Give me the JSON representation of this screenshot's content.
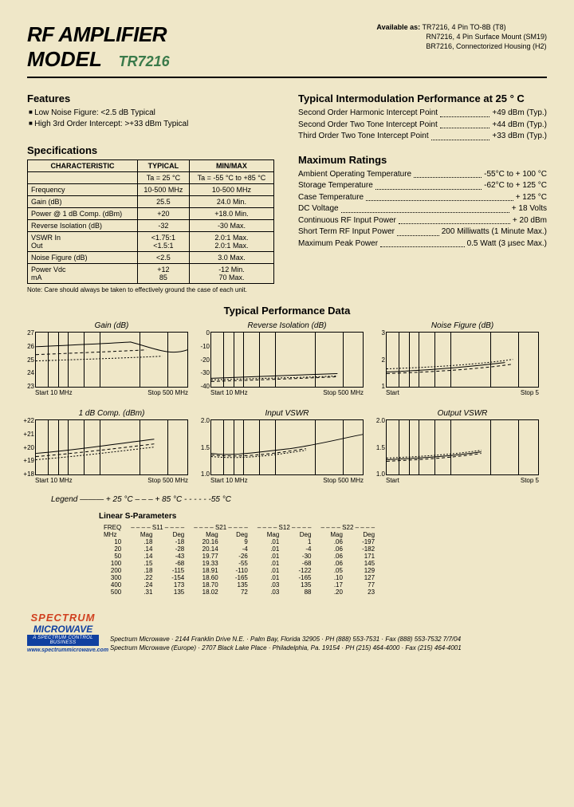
{
  "header": {
    "title_l1": "RF AMPLIFIER",
    "title_l2": "MODEL",
    "model": "TR7216",
    "avail_label": "Available as:",
    "avail": [
      "TR7216, 4 Pin TO-8B (T8)",
      "RN7216, 4 Pin Surface Mount (SM19)",
      "BR7216, Connectorized Housing (H2)"
    ]
  },
  "features": {
    "heading": "Features",
    "items": [
      "Low Noise Figure: <2.5 dB Typical",
      "High 3rd Order Intercept: >+33 dBm Typical"
    ]
  },
  "spec": {
    "heading": "Specifications",
    "cols": [
      "CHARACTERISTIC",
      "TYPICAL",
      "MIN/MAX"
    ],
    "subcols": [
      "",
      "Ta = 25 °C",
      "Ta = -55 °C to +85 °C"
    ],
    "rows": [
      [
        "Frequency",
        "10-500 MHz",
        "10-500 MHz"
      ],
      [
        "Gain (dB)",
        "25.5",
        "24.0 Min."
      ],
      [
        "Power @ 1 dB Comp. (dBm)",
        "+20",
        "+18.0 Min."
      ],
      [
        "Reverse Isolation (dB)",
        "-32",
        "-30 Max."
      ],
      [
        "VSWR   In\n            Out",
        "<1.75:1\n<1.5:1",
        "2.0:1 Max.\n2.0:1 Max."
      ],
      [
        "Noise Figure (dB)",
        "<2.5",
        "3.0 Max."
      ],
      [
        "Power    Vdc\n              mA",
        "+12\n85",
        "-12 Min.\n70 Max."
      ]
    ],
    "note": "Note: Care should always be taken to effectively ground the case of each unit."
  },
  "intermod": {
    "heading": "Typical Intermodulation Performance at 25 ° C",
    "rows": [
      {
        "l": "Second Order Harmonic Intercept Point",
        "v": "+49 dBm (Typ.)"
      },
      {
        "l": "Second Order Two Tone Intercept Point",
        "v": "+44 dBm (Typ.)"
      },
      {
        "l": "Third Order Two Tone Intercept Point",
        "v": "+33 dBm (Typ.)"
      }
    ]
  },
  "maxratings": {
    "heading": "Maximum Ratings",
    "rows": [
      {
        "l": "Ambient Operating Temperature",
        "v": "-55°C to + 100 °C"
      },
      {
        "l": "Storage Temperature",
        "v": "-62°C to + 125 °C"
      },
      {
        "l": "Case Temperature",
        "v": "+ 125 °C"
      },
      {
        "l": "DC Voltage",
        "v": "+ 18 Volts"
      },
      {
        "l": "Continuous RF Input Power",
        "v": "+ 20 dBm"
      },
      {
        "l": "Short Term RF Input Power",
        "v": "200 Milliwatts (1 Minute Max.)"
      },
      {
        "l": "Maximum Peak Power",
        "v": "0.5 Watt (3 µsec Max.)"
      }
    ]
  },
  "perf_title": "Typical Performance Data",
  "charts": [
    {
      "title": "Gain (dB)",
      "ylabels": [
        "27",
        "26",
        "25",
        "24",
        "23"
      ],
      "xstart": "Start 10 MHz",
      "xstop": "Stop 500 MHz",
      "paths": [
        "M0,18 C40,16 90,14 120,12 150,20 170,30 192,22",
        "M0,28 C50,26 100,24 140,22 170,26 192,30",
        "M0,36 C60,34 120,32 160,30 192,36"
      ]
    },
    {
      "title": "Reverse Isolation (dB)",
      "ylabels": [
        "0",
        "-10",
        "-20",
        "-30",
        "-40"
      ],
      "xstart": "Start 10 MHz",
      "xstop": "Stop 500 MHz",
      "paths": [
        "M0,58 C60,56 120,54 160,52 192,50",
        "M0,62 C60,60 120,58 160,56 192,54",
        "M0,60 C60,58 120,57 160,55 192,52"
      ]
    },
    {
      "title": "Noise Figure (dB)",
      "ylabels": [
        "3",
        "",
        "2",
        "",
        "1"
      ],
      "xstart": "Start",
      "xstop": "Stop 5",
      "paths": [
        "M0,50 C50,48 100,44 150,38 192,30",
        "M0,52 C60,50 120,46 160,40 192,34",
        "M0,46 C60,44 120,40 160,34 192,28"
      ]
    },
    {
      "title": "1 dB Comp. (dBm)",
      "ylabels": [
        "+22",
        "+21",
        "+20",
        "+19",
        "+18"
      ],
      "xstart": "Start 10 MHz",
      "xstop": "Stop 500 MHz",
      "paths": [
        "M0,42 C50,38 100,30 150,24 192,20",
        "M0,46 C50,42 100,36 150,30 192,26",
        "M0,50 C50,46 100,40 150,34 192,30"
      ]
    },
    {
      "title": "Input VSWR",
      "ylabels": [
        "2.0",
        "",
        "1.5",
        "",
        "1.0"
      ],
      "xstart": "Start 10 MHz",
      "xstop": "Stop 500 MHz",
      "paths": [
        "M0,42 C30,46 60,40 100,36 140,30 170,22 192,18",
        "M0,44 C40,48 80,42 120,36 160,28 192,22",
        "M0,46 C40,50 80,44 120,38 160,30 192,24"
      ]
    },
    {
      "title": "Output VSWR",
      "ylabels": [
        "2.0",
        "",
        "1.5",
        "",
        "1.0"
      ],
      "xstart": "Start",
      "xstop": "Stop 5",
      "paths": [
        "M0,50 C40,48 80,46 120,40 160,30 192,22",
        "M0,52 C40,50 80,48 120,42 160,34 192,26",
        "M0,48 C40,46 80,44 120,38 160,28 192,20"
      ]
    }
  ],
  "legend": "Legend ——— + 25 °C  – – –  + 85 °C  - - - - -  -55 °C",
  "sparams": {
    "heading": "Linear S-Parameters",
    "freq_h": "FREQ\nMHz",
    "groups": [
      "S11",
      "S21",
      "S12",
      "S22"
    ],
    "sub": [
      "Mag",
      "Deg"
    ],
    "rows": [
      [
        "10",
        ".18",
        "-18",
        "20.16",
        "9",
        ".01",
        "1",
        ".06",
        "-197"
      ],
      [
        "20",
        ".14",
        "-28",
        "20.14",
        "-4",
        ".01",
        "-4",
        ".06",
        "-182"
      ],
      [
        "50",
        ".14",
        "-43",
        "19.77",
        "-26",
        ".01",
        "-30",
        ".06",
        "171"
      ],
      [
        "100",
        ".15",
        "-68",
        "19.33",
        "-55",
        ".01",
        "-68",
        ".06",
        "145"
      ],
      [
        "200",
        ".18",
        "-115",
        "18.91",
        "-110",
        ".01",
        "-122",
        ".05",
        "129"
      ],
      [
        "300",
        ".22",
        "-154",
        "18.60",
        "-165",
        ".01",
        "-165",
        ".10",
        "127"
      ],
      [
        "400",
        ".24",
        "173",
        "18.70",
        "135",
        ".03",
        "135",
        ".17",
        "77"
      ],
      [
        "500",
        ".31",
        "135",
        "18.02",
        "72",
        ".03",
        "88",
        ".20",
        "23"
      ]
    ]
  },
  "footer": {
    "logo_top": "SPECTRUM",
    "logo_mid": "MICROWAVE",
    "logo_tag": "A SPECTRUM CONTROL BUSINESS",
    "l1": "Spectrum Microwave · 2144 Franklin Drive N.E. · Palm Bay, Florida 32905 · PH (888) 553-7531 · Fax (888) 553-7532   7/7/04",
    "l2": "Spectrum Microwave (Europe) · 2707 Black Lake Place · Philadelphia, Pa. 19154 · PH (215) 464-4000 · Fax (215) 464-4001",
    "url": "www.spectrummicrowave.com"
  },
  "style": {
    "bg": "#efe7c8",
    "vgrids": [
      15,
      28,
      40,
      60,
      80,
      130,
      165
    ]
  }
}
